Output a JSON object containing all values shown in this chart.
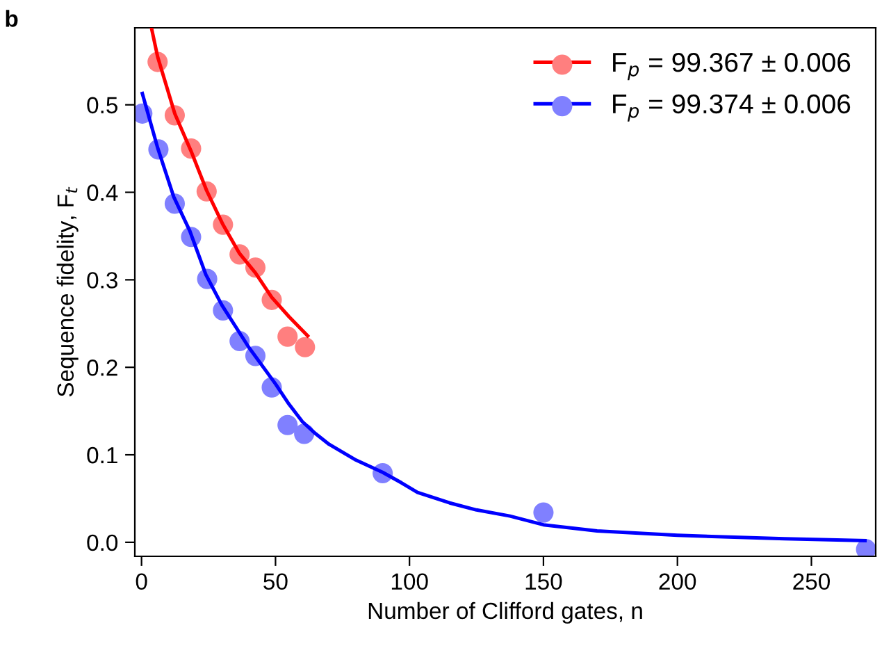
{
  "chart_data": {
    "type": "scatter",
    "title": "b",
    "xlabel": "Number of Clifford gates, n",
    "ylabel": "Sequence fidelity, F$_{t}$",
    "xlim": [
      -2.5,
      274
    ],
    "xticks": [
      0,
      50,
      100,
      150,
      200,
      250
    ],
    "ylim": [
      -0.016,
      0.588
    ],
    "yticks": [
      {
        "value": 0,
        "label": "0.0"
      },
      0.1,
      0.2,
      0.3,
      0.4,
      0.5
    ],
    "grid": false,
    "legend": "top right",
    "marker": "circle",
    "series": [
      {
        "name": "F$_{p}$ = 99.367 ± 0.006",
        "color": "#ff7f7f",
        "x": [
          6,
          12.4,
          18.5,
          24.3,
          30.4,
          36.6,
          42.5,
          48.6,
          54.5,
          61
        ],
        "values": [
          0.549,
          0.488,
          0.45,
          0.401,
          0.363,
          0.329,
          0.314,
          0.277,
          0.235,
          0.223
        ]
      },
      {
        "type": "line",
        "color": "#ff0000",
        "marker": "none",
        "x": [
          3.7,
          6,
          12.4,
          18.5,
          24.3,
          30.4,
          36.6,
          42.5,
          48.6,
          55,
          62
        ],
        "values": [
          0.588,
          0.555,
          0.49,
          0.447,
          0.402,
          0.363,
          0.33,
          0.308,
          0.28,
          0.258,
          0.236
        ]
      },
      {
        "name": "F$_{p}$ = 99.374 ± 0.006",
        "color": "#8080ff",
        "x": [
          0.3,
          6.3,
          12.4,
          18.5,
          24.5,
          30.4,
          36.6,
          42.5,
          48.6,
          54.5,
          60.7,
          90,
          150,
          270.4
        ],
        "values": [
          0.49,
          0.449,
          0.387,
          0.349,
          0.301,
          0.265,
          0.23,
          0.213,
          0.177,
          0.134,
          0.124,
          0.079,
          0.034,
          -0.008
        ]
      },
      {
        "type": "line",
        "color": "#0000ff",
        "marker": "none",
        "x": [
          0.3,
          6,
          12,
          18,
          24,
          30,
          40,
          50,
          55,
          60,
          65,
          70,
          80,
          90,
          97,
          103,
          115,
          125,
          137.5,
          150,
          170,
          200,
          240,
          270
        ],
        "values": [
          0.513,
          0.451,
          0.395,
          0.356,
          0.306,
          0.271,
          0.223,
          0.181,
          0.158,
          0.138,
          0.124,
          0.112,
          0.094,
          0.08,
          0.068,
          0.057,
          0.045,
          0.037,
          0.03,
          0.02,
          0.013,
          0.008,
          0.004,
          0.002
        ]
      }
    ]
  }
}
